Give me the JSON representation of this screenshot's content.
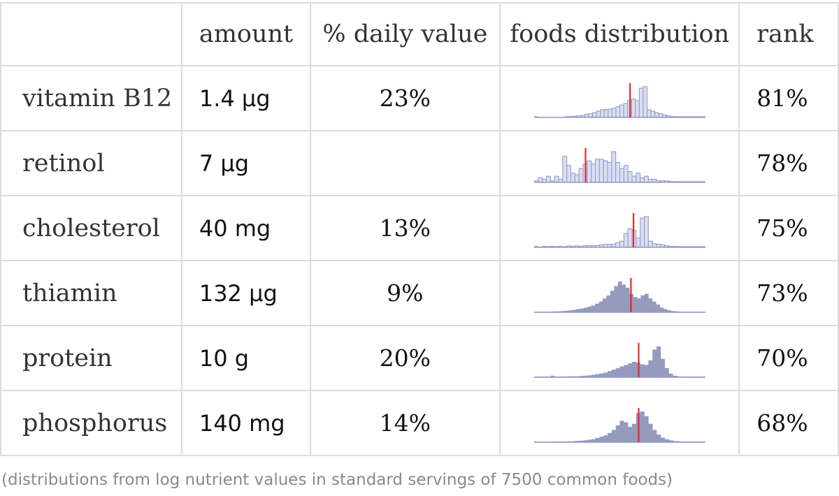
{
  "table": {
    "headers": {
      "label": "",
      "amount": "amount",
      "daily_value": "% daily value",
      "distribution": "foods distribution",
      "rank": "rank"
    },
    "rows": [
      {
        "label": "vitamin B12",
        "amount": "1.4 μg",
        "daily_value": "23%",
        "rank": "81%"
      },
      {
        "label": "retinol",
        "amount": "7 μg",
        "daily_value": "",
        "rank": "78%"
      },
      {
        "label": "cholesterol",
        "amount": "40 mg",
        "daily_value": "13%",
        "rank": "75%"
      },
      {
        "label": "thiamin",
        "amount": "132 μg",
        "daily_value": "9%",
        "rank": "73%"
      },
      {
        "label": "protein",
        "amount": "10 g",
        "daily_value": "20%",
        "rank": "70%"
      },
      {
        "label": "phosphorus",
        "amount": "140 mg",
        "daily_value": "14%",
        "rank": "68%"
      }
    ]
  },
  "footnote": "(distributions from log nutrient values in standard servings of 7500 common foods)",
  "chart_data": [
    {
      "type": "bar",
      "title": "vitamin B12 foods distribution",
      "style": "outline",
      "values": [
        0.02,
        0,
        0,
        0,
        0,
        0,
        0,
        0,
        0.02,
        0.03,
        0.04,
        0.05,
        0.06,
        0.1,
        0.12,
        0.15,
        0.2,
        0.25,
        0.26,
        0.27,
        0.3,
        0.35,
        0.4,
        0.45,
        0.55,
        0.6,
        0.55,
        0.95,
        1.0,
        0.25,
        0.2,
        0.15,
        0.12,
        0.08,
        0.05,
        0.03,
        0.02,
        0.02,
        0.02,
        0.01,
        0.01,
        0.01,
        0.01,
        0.02
      ],
      "marker_fraction": 0.56
    },
    {
      "type": "bar",
      "title": "retinol foods distribution",
      "style": "outline",
      "values": [
        0.05,
        0.15,
        0.1,
        0.2,
        0.05,
        0.2,
        0.1,
        0.85,
        0.55,
        0.3,
        0.25,
        0.45,
        0.6,
        0.7,
        0.6,
        0.75,
        0.75,
        0.7,
        0.65,
        1.0,
        0.65,
        0.45,
        0.55,
        0.35,
        0.2,
        0.3,
        0.15,
        0.2,
        0.1,
        0.1,
        0.05,
        0.05,
        0.05,
        0.03,
        0.02,
        0.02,
        0.02,
        0.01,
        0.01,
        0.01,
        0.01,
        0.01
      ],
      "marker_fraction": 0.3
    },
    {
      "type": "bar",
      "title": "cholesterol foods distribution",
      "style": "outline",
      "values": [
        0.03,
        0,
        0.03,
        0.02,
        0.03,
        0.02,
        0.03,
        0.02,
        0.05,
        0.03,
        0.05,
        0.03,
        0.05,
        0.06,
        0.05,
        0.06,
        0.08,
        0.1,
        0.1,
        0.1,
        0.15,
        0.2,
        0.45,
        0.6,
        0.55,
        0.3,
        0.95,
        1.0,
        0.2,
        0.12,
        0.1,
        0.08,
        0.05,
        0.03,
        0.03,
        0.02,
        0.02,
        0.02,
        0.02,
        0.02,
        0.02,
        0.02
      ],
      "marker_fraction": 0.58
    },
    {
      "type": "area",
      "title": "thiamin foods distribution",
      "style": "filled",
      "values": [
        0.02,
        0.02,
        0.02,
        0.02,
        0.02,
        0.03,
        0.03,
        0.04,
        0.05,
        0.06,
        0.08,
        0.1,
        0.12,
        0.15,
        0.18,
        0.22,
        0.28,
        0.35,
        0.45,
        0.55,
        0.7,
        0.85,
        1.0,
        0.9,
        0.8,
        0.6,
        0.5,
        0.45,
        0.55,
        0.6,
        0.45,
        0.35,
        0.25,
        0.15,
        0.1,
        0.06,
        0.04,
        0.03,
        0.02,
        0.02,
        0.01,
        0.01,
        0.01,
        0.01,
        0.02
      ],
      "marker_fraction": 0.565
    },
    {
      "type": "area",
      "title": "protein foods distribution",
      "style": "filled",
      "values": [
        0.02,
        0.02,
        0.02,
        0.02,
        0.05,
        0.02,
        0.02,
        0.02,
        0.03,
        0.03,
        0.03,
        0.04,
        0.05,
        0.06,
        0.08,
        0.1,
        0.12,
        0.15,
        0.2,
        0.25,
        0.3,
        0.35,
        0.4,
        0.45,
        0.5,
        0.48,
        0.42,
        0.4,
        0.55,
        0.9,
        1.0,
        0.6,
        0.3,
        0.12,
        0.05,
        0.03,
        0.02,
        0.02,
        0.02,
        0.02,
        0.02,
        0.02
      ],
      "marker_fraction": 0.61
    },
    {
      "type": "area",
      "title": "phosphorus foods distribution",
      "style": "filled",
      "values": [
        0.02,
        0,
        0.02,
        0,
        0.02,
        0.02,
        0.02,
        0.02,
        0.03,
        0.03,
        0.04,
        0.05,
        0.06,
        0.08,
        0.1,
        0.14,
        0.18,
        0.22,
        0.3,
        0.4,
        0.55,
        0.7,
        0.65,
        0.5,
        0.6,
        0.95,
        1.0,
        0.85,
        0.6,
        0.4,
        0.25,
        0.15,
        0.1,
        0.06,
        0.04,
        0.03,
        0.02,
        0.02,
        0.02,
        0.02,
        0.02,
        0.02
      ],
      "marker_fraction": 0.61
    }
  ],
  "colors": {
    "bar_outline": "#8f97c4",
    "bar_fill_light": "#dadef0",
    "bar_fill": "#959bbd",
    "baseline": "#8f97c4",
    "marker": "#e8262a"
  }
}
